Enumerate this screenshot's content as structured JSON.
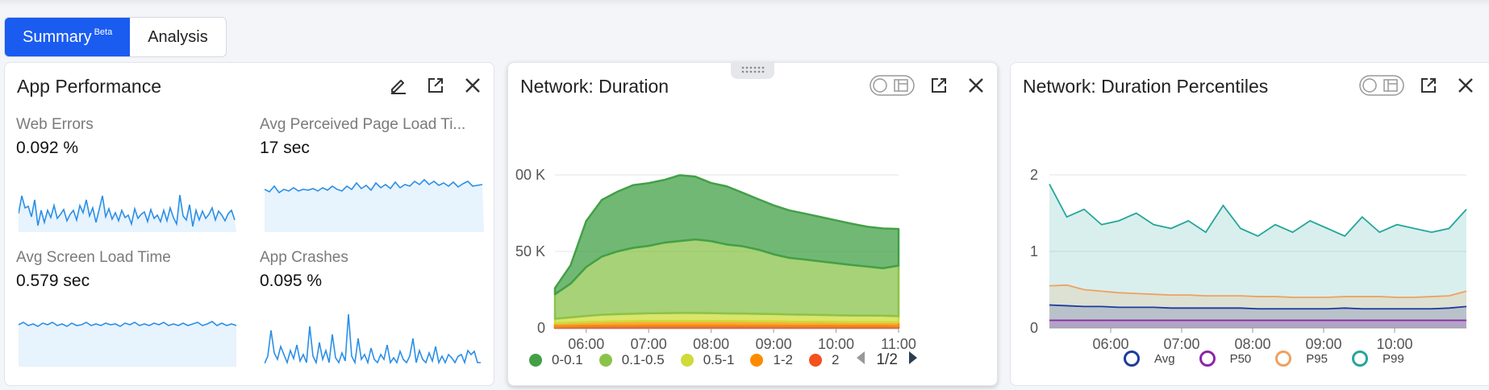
{
  "tabs": {
    "summary": "Summary",
    "summary_badge": "Beta",
    "analysis": "Analysis"
  },
  "app_performance": {
    "title": "App Performance",
    "metrics": [
      {
        "label": "Web Errors",
        "value": "0.092 %"
      },
      {
        "label": "Avg Perceived Page Load Ti...",
        "value": "17 sec"
      },
      {
        "label": "Avg Screen Load Time",
        "value": "0.579 sec"
      },
      {
        "label": "App Crashes",
        "value": "0.095 %"
      }
    ],
    "spark_color": "#2b8fe6",
    "spark_fill": "#e7f3fd"
  },
  "chart_data": [
    {
      "type": "area",
      "title": "Network: Duration",
      "stacked": true,
      "y_ticks": [
        "00 K",
        "50 K",
        "0"
      ],
      "x_ticks": [
        "06:00",
        "07:00",
        "08:00",
        "09:00",
        "10:00",
        "11:00"
      ],
      "ylim": [
        0,
        100000
      ],
      "x": [
        "05:30",
        "05:45",
        "06:00",
        "06:15",
        "06:30",
        "06:45",
        "07:00",
        "07:15",
        "07:30",
        "07:45",
        "08:00",
        "08:15",
        "08:30",
        "08:45",
        "09:00",
        "09:15",
        "09:30",
        "09:45",
        "10:00",
        "10:15",
        "10:30",
        "10:45",
        "11:00"
      ],
      "series": [
        {
          "name": "2",
          "color": "#f4511e",
          "values": [
            1000,
            1200,
            1300,
            1400,
            1500,
            1500,
            1600,
            1600,
            1600,
            1600,
            1600,
            1600,
            1500,
            1500,
            1500,
            1400,
            1400,
            1400,
            1300,
            1300,
            1300,
            1300,
            1200
          ]
        },
        {
          "name": "1-2",
          "color": "#fb8c00",
          "values": [
            2000,
            2200,
            2500,
            2700,
            2800,
            2900,
            3000,
            3000,
            3000,
            3000,
            3000,
            2900,
            2900,
            2800,
            2800,
            2700,
            2700,
            2600,
            2600,
            2500,
            2500,
            2500,
            2400
          ]
        },
        {
          "name": "0.5-1",
          "color": "#cddc39",
          "values": [
            3000,
            3500,
            4000,
            4500,
            4700,
            4900,
            5000,
            5100,
            5200,
            5200,
            5100,
            5000,
            5000,
            4900,
            4800,
            4700,
            4600,
            4500,
            4400,
            4300,
            4300,
            4200,
            4100
          ]
        },
        {
          "name": "0.1-0.5",
          "color": "#8bc34a",
          "values": [
            16000,
            22000,
            32000,
            38000,
            41000,
            43000,
            44000,
            46000,
            47000,
            48000,
            47000,
            45000,
            44000,
            42000,
            39000,
            37000,
            36000,
            35000,
            34000,
            33000,
            32000,
            31000,
            33000
          ]
        },
        {
          "name": "0-0.1",
          "color": "#43a047",
          "values": [
            4000,
            12000,
            30000,
            37000,
            39000,
            41000,
            41000,
            41000,
            43000,
            41000,
            38000,
            38000,
            35000,
            33000,
            32000,
            31000,
            30000,
            29000,
            28000,
            27000,
            26000,
            26000,
            24000
          ]
        }
      ],
      "legend_page": "1/2"
    },
    {
      "type": "line",
      "title": "Network: Duration Percentiles",
      "y_ticks": [
        "2",
        "1",
        "0"
      ],
      "x_ticks": [
        "06:00",
        "07:00",
        "08:00",
        "09:00",
        "10:00"
      ],
      "ylim": [
        0,
        2
      ],
      "series": [
        {
          "name": "Avg",
          "color": "#1e3a9f",
          "values": [
            0.3,
            0.29,
            0.28,
            0.28,
            0.27,
            0.27,
            0.27,
            0.26,
            0.26,
            0.26,
            0.26,
            0.26,
            0.25,
            0.25,
            0.25,
            0.25,
            0.25,
            0.26,
            0.25,
            0.25,
            0.25,
            0.25,
            0.25,
            0.26,
            0.28
          ]
        },
        {
          "name": "P50",
          "color": "#8e24aa",
          "values": [
            0.1,
            0.1,
            0.1,
            0.1,
            0.1,
            0.1,
            0.1,
            0.1,
            0.1,
            0.1,
            0.1,
            0.1,
            0.1,
            0.1,
            0.1,
            0.1,
            0.1,
            0.1,
            0.1,
            0.1,
            0.1,
            0.1,
            0.1,
            0.1,
            0.1
          ]
        },
        {
          "name": "P95",
          "color": "#f0a060",
          "values": [
            0.55,
            0.56,
            0.5,
            0.48,
            0.46,
            0.45,
            0.44,
            0.43,
            0.43,
            0.42,
            0.42,
            0.42,
            0.41,
            0.41,
            0.4,
            0.4,
            0.4,
            0.41,
            0.41,
            0.41,
            0.4,
            0.4,
            0.41,
            0.42,
            0.48
          ]
        },
        {
          "name": "P99",
          "color": "#26a69a",
          "values": [
            1.88,
            1.45,
            1.55,
            1.35,
            1.4,
            1.5,
            1.35,
            1.3,
            1.4,
            1.25,
            1.6,
            1.3,
            1.2,
            1.35,
            1.25,
            1.4,
            1.3,
            1.2,
            1.45,
            1.25,
            1.35,
            1.3,
            1.25,
            1.3,
            1.55
          ]
        }
      ]
    }
  ],
  "network_duration": {
    "title": "Network: Duration"
  },
  "network_percentiles": {
    "title": "Network: Duration Percentiles"
  }
}
